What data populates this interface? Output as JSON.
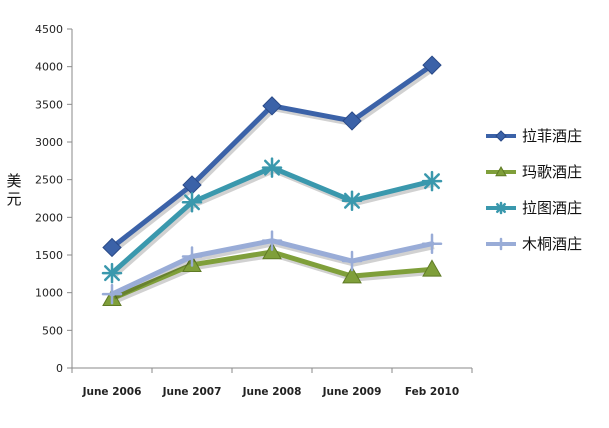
{
  "chart_data": {
    "type": "line",
    "title": "",
    "xlabel": "",
    "ylabel": "美元",
    "ylim": [
      0,
      4500
    ],
    "ytick_step": 500,
    "categories": [
      "June 2006",
      "June 2007",
      "June 2008",
      "June 2009",
      "Feb 2010"
    ],
    "legend_position": "right",
    "series": [
      {
        "name": "拉菲酒庄",
        "color": "#3b62a8",
        "marker": "diamond",
        "values": [
          1600,
          2430,
          3480,
          3280,
          4020
        ]
      },
      {
        "name": "玛歌酒庄",
        "color": "#7f9f3a",
        "marker": "triangle",
        "values": [
          920,
          1370,
          1540,
          1220,
          1310
        ]
      },
      {
        "name": "拉图酒庄",
        "color": "#3a98ad",
        "marker": "asterisk",
        "values": [
          1260,
          2200,
          2660,
          2220,
          2480
        ]
      },
      {
        "name": "木桐酒庄",
        "color": "#99acd7",
        "marker": "plus",
        "values": [
          980,
          1480,
          1690,
          1420,
          1650
        ]
      }
    ]
  }
}
